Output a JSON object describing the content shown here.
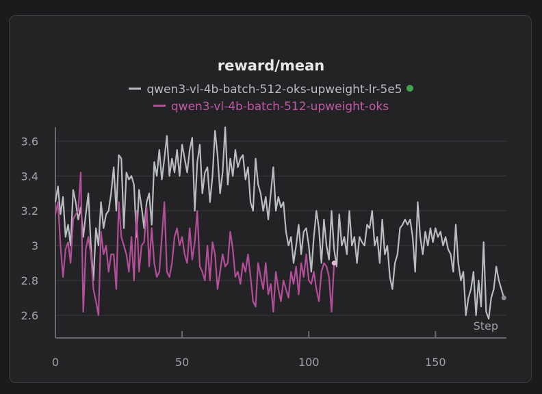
{
  "colors": {
    "series1": "#b9bcc0",
    "series2": "#b34e99",
    "grid": "#3a3a3d",
    "axis": "#6a6a6e",
    "status_dot": "#3fa34d"
  },
  "chart_data": {
    "type": "line",
    "title": "reward/mean",
    "xlabel": "Step",
    "ylabel": "",
    "xlim": [
      0,
      178
    ],
    "ylim": [
      2.47,
      3.68
    ],
    "xticks": [
      0,
      50,
      100,
      150
    ],
    "yticks": [
      2.6,
      2.8,
      3,
      3.2,
      3.4,
      3.6
    ],
    "xtick_labels": [
      "0",
      "50",
      "100",
      "150"
    ],
    "ytick_labels": [
      "2.6",
      "2.8",
      "3",
      "3.2",
      "3.4",
      "3.6"
    ],
    "grid": true,
    "legend_position": "top-center",
    "series": [
      {
        "name": "qwen3-vl-4b-batch-512-oks-upweight-lr-5e5",
        "x": [
          0,
          1,
          2,
          3,
          4,
          5,
          6,
          7,
          8,
          9,
          10,
          11,
          12,
          13,
          14,
          15,
          16,
          17,
          18,
          19,
          20,
          21,
          22,
          23,
          24,
          25,
          26,
          27,
          28,
          29,
          30,
          31,
          32,
          33,
          34,
          35,
          36,
          37,
          38,
          39,
          40,
          41,
          42,
          43,
          44,
          45,
          46,
          47,
          48,
          49,
          50,
          51,
          52,
          53,
          54,
          55,
          56,
          57,
          58,
          59,
          60,
          61,
          62,
          63,
          64,
          65,
          66,
          67,
          68,
          69,
          70,
          71,
          72,
          73,
          74,
          75,
          76,
          77,
          78,
          79,
          80,
          81,
          82,
          83,
          84,
          85,
          86,
          87,
          88,
          89,
          90,
          91,
          92,
          93,
          94,
          95,
          96,
          97,
          98,
          99,
          100,
          101,
          102,
          103,
          104,
          105,
          106,
          107,
          108,
          109,
          110,
          111,
          112,
          113,
          114,
          115,
          116,
          117,
          118,
          119,
          120,
          121,
          122,
          123,
          124,
          125,
          126,
          127,
          128,
          129,
          130,
          131,
          132,
          133,
          134,
          135,
          136,
          137,
          138,
          139,
          140,
          141,
          142,
          143,
          144,
          145,
          146,
          147,
          148,
          149,
          150,
          151,
          152,
          153,
          154,
          155,
          156,
          157,
          158,
          159,
          160,
          161,
          162,
          163,
          164,
          165,
          166,
          167,
          168,
          169,
          170,
          171,
          172,
          173,
          174,
          175,
          176,
          177
        ],
        "values": [
          3.25,
          3.34,
          3.18,
          3.28,
          3.05,
          3.12,
          3.0,
          3.32,
          3.25,
          3.15,
          3.22,
          3.05,
          3.18,
          3.3,
          3.0,
          2.8,
          3.1,
          3.0,
          3.25,
          3.1,
          3.18,
          3.2,
          3.3,
          3.45,
          3.2,
          3.52,
          3.5,
          3.1,
          3.42,
          3.38,
          3.4,
          3.35,
          3.05,
          3.32,
          3.22,
          3.1,
          3.25,
          3.3,
          3.12,
          3.48,
          3.4,
          3.55,
          3.38,
          3.5,
          3.63,
          3.4,
          3.5,
          3.42,
          3.55,
          3.4,
          3.58,
          3.5,
          3.42,
          3.55,
          3.62,
          3.2,
          3.48,
          3.58,
          3.3,
          3.42,
          3.45,
          3.25,
          3.4,
          3.66,
          3.52,
          3.3,
          3.42,
          3.68,
          3.35,
          3.5,
          3.4,
          3.55,
          3.45,
          3.5,
          3.52,
          3.38,
          3.45,
          3.25,
          3.2,
          3.5,
          3.35,
          3.3,
          3.2,
          3.28,
          3.15,
          3.3,
          3.45,
          3.2,
          3.28,
          3.22,
          3.25,
          3.08,
          3.0,
          3.05,
          2.9,
          3.0,
          3.12,
          2.95,
          3.08,
          3.1,
          3.0,
          2.85,
          3.05,
          3.2,
          3.1,
          2.9,
          3.15,
          3.0,
          2.92,
          3.2,
          2.98,
          2.88,
          3.18,
          3.0,
          3.05,
          2.95,
          3.2,
          3.0,
          3.05,
          2.9,
          3.05,
          3.02,
          3.0,
          3.12,
          3.1,
          3.2,
          3.0,
          3.05,
          2.9,
          3.15,
          2.95,
          3.0,
          2.82,
          2.75,
          2.9,
          2.95,
          3.1,
          3.12,
          3.15,
          3.12,
          3.15,
          3.05,
          2.85,
          3.25,
          3.05,
          2.95,
          3.08,
          3.0,
          3.1,
          3.02,
          3.1,
          3.05,
          3.08,
          3.0,
          3.05,
          2.98,
          2.95,
          2.85,
          3.12,
          2.9,
          2.8,
          2.85,
          2.6,
          2.7,
          2.75,
          2.85,
          2.6,
          2.8,
          2.65,
          3.02,
          2.62,
          2.58,
          2.7,
          2.75,
          2.88,
          2.8,
          2.75,
          2.7
        ]
      },
      {
        "name": "qwen3-vl-4b-batch-512-upweight-oks",
        "x": [
          0,
          1,
          2,
          3,
          4,
          5,
          6,
          7,
          8,
          9,
          10,
          11,
          12,
          13,
          14,
          15,
          16,
          17,
          18,
          19,
          20,
          21,
          22,
          23,
          24,
          25,
          26,
          27,
          28,
          29,
          30,
          31,
          32,
          33,
          34,
          35,
          36,
          37,
          38,
          39,
          40,
          41,
          42,
          43,
          44,
          45,
          46,
          47,
          48,
          49,
          50,
          51,
          52,
          53,
          54,
          55,
          56,
          57,
          58,
          59,
          60,
          61,
          62,
          63,
          64,
          65,
          66,
          67,
          68,
          69,
          70,
          71,
          72,
          73,
          74,
          75,
          76,
          77,
          78,
          79,
          80,
          81,
          82,
          83,
          84,
          85,
          86,
          87,
          88,
          89,
          90,
          91,
          92,
          93,
          94,
          95,
          96,
          97,
          98,
          99,
          100,
          101,
          102,
          103,
          104,
          105,
          106,
          107,
          108,
          109,
          110
        ],
        "values": [
          3.18,
          3.25,
          3.0,
          2.82,
          2.98,
          3.02,
          2.9,
          3.15,
          3.18,
          3.2,
          3.42,
          2.62,
          2.98,
          3.05,
          2.95,
          2.75,
          2.68,
          2.6,
          3.08,
          2.95,
          3.0,
          2.85,
          2.95,
          2.95,
          2.75,
          3.25,
          3.05,
          3.0,
          2.95,
          2.85,
          3.05,
          2.8,
          3.2,
          2.85,
          3.0,
          3.02,
          3.22,
          2.88,
          3.1,
          2.9,
          2.82,
          2.85,
          3.05,
          3.25,
          2.85,
          2.82,
          2.9,
          3.05,
          3.1,
          3.0,
          3.05,
          2.95,
          2.9,
          3.1,
          2.92,
          3.02,
          3.2,
          2.88,
          2.85,
          2.8,
          3.0,
          2.8,
          3.02,
          2.95,
          2.75,
          2.85,
          2.95,
          2.88,
          2.9,
          3.08,
          2.98,
          2.82,
          2.85,
          2.78,
          2.9,
          2.85,
          2.95,
          2.82,
          2.68,
          2.65,
          2.9,
          2.82,
          2.75,
          2.9,
          2.72,
          2.78,
          2.62,
          2.85,
          2.75,
          2.68,
          2.8,
          2.75,
          2.7,
          2.85,
          2.78,
          2.88,
          2.72,
          2.9,
          2.82,
          2.95,
          2.8,
          2.78,
          2.85,
          2.75,
          2.68,
          2.85,
          2.9,
          2.88,
          2.82,
          2.62,
          2.9
        ]
      }
    ]
  }
}
